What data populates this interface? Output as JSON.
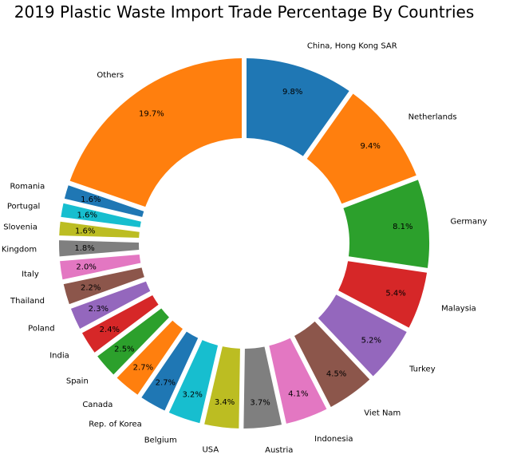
{
  "chart_data": {
    "type": "pie",
    "title": "2019 Plastic Waste Import Trade Percentage By Countries",
    "startangle": 90,
    "counterclock": false,
    "slices": [
      {
        "label": "China, Hong Kong SAR",
        "pct_label": "9.8%",
        "value": 9.8,
        "color": "#1f77b4"
      },
      {
        "label": "Netherlands",
        "pct_label": "9.4%",
        "value": 9.4,
        "color": "#ff7f0e"
      },
      {
        "label": "Germany",
        "pct_label": "8.1%",
        "value": 8.1,
        "color": "#2ca02c"
      },
      {
        "label": "Malaysia",
        "pct_label": "5.4%",
        "value": 5.4,
        "color": "#d62728"
      },
      {
        "label": "Turkey",
        "pct_label": "5.2%",
        "value": 5.2,
        "color": "#9467bd"
      },
      {
        "label": "Viet Nam",
        "pct_label": "4.5%",
        "value": 4.5,
        "color": "#8c564b"
      },
      {
        "label": "Indonesia",
        "pct_label": "4.1%",
        "value": 4.1,
        "color": "#e377c2"
      },
      {
        "label": "Austria",
        "pct_label": "3.7%",
        "value": 3.7,
        "color": "#7f7f7f"
      },
      {
        "label": "USA",
        "pct_label": "3.4%",
        "value": 3.4,
        "color": "#bcbd22"
      },
      {
        "label": "Belgium",
        "pct_label": "3.2%",
        "value": 3.2,
        "color": "#17becf"
      },
      {
        "label": "Rep. of Korea",
        "pct_label": "2.7%",
        "value": 2.7,
        "color": "#1f77b4"
      },
      {
        "label": "Canada",
        "pct_label": "2.7%",
        "value": 2.7,
        "color": "#ff7f0e"
      },
      {
        "label": "Spain",
        "pct_label": "2.5%",
        "value": 2.5,
        "color": "#2ca02c"
      },
      {
        "label": "India",
        "pct_label": "2.4%",
        "value": 2.4,
        "color": "#d62728"
      },
      {
        "label": "Poland",
        "pct_label": "2.3%",
        "value": 2.3,
        "color": "#9467bd"
      },
      {
        "label": "Thailand",
        "pct_label": "2.2%",
        "value": 2.2,
        "color": "#8c564b"
      },
      {
        "label": "Italy",
        "pct_label": "2.0%",
        "value": 2.0,
        "color": "#e377c2"
      },
      {
        "label": "United Kingdom",
        "pct_label": "1.8%",
        "value": 1.8,
        "color": "#7f7f7f"
      },
      {
        "label": "Slovenia",
        "pct_label": "1.6%",
        "value": 1.6,
        "color": "#bcbd22"
      },
      {
        "label": "Portugal",
        "pct_label": "1.6%",
        "value": 1.6,
        "color": "#17becf"
      },
      {
        "label": "Romania",
        "pct_label": "1.6%",
        "value": 1.6,
        "color": "#1f77b4"
      },
      {
        "label": "Others",
        "pct_label": "19.7%",
        "value": 19.7,
        "color": "#ff7f0e"
      }
    ]
  }
}
